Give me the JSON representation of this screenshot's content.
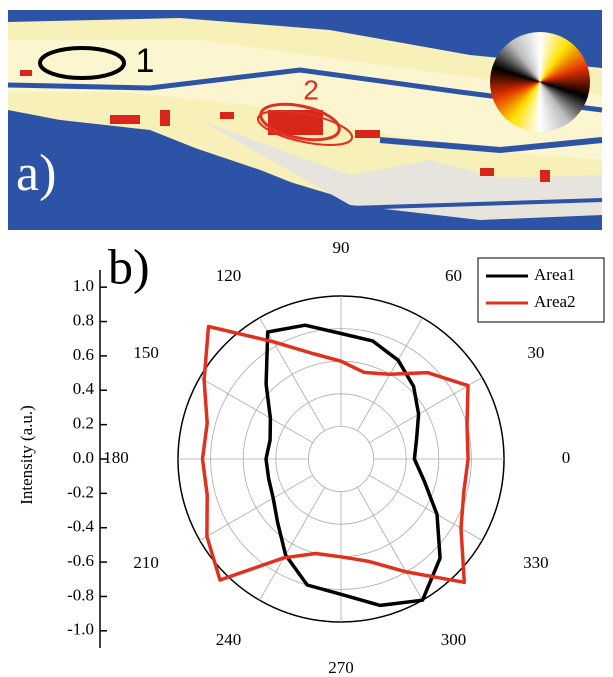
{
  "panel_a": {
    "label": "a)",
    "markers": [
      "1",
      "2"
    ]
  },
  "chart_data": {
    "type": "polar",
    "panel_label": "b)",
    "ylabel": "Intensity (a.u.)",
    "ylim": [
      -1.1,
      1.1
    ],
    "yticks": [
      {
        "value": -1,
        "label": "-1.0"
      },
      -0.8,
      -0.6,
      -0.4,
      -0.2,
      {
        "value": 0,
        "label": "0.0"
      },
      0.2,
      0.4,
      0.6,
      0.8,
      {
        "value": 1,
        "label": "1.0"
      }
    ],
    "theta": [
      0,
      15,
      30,
      45,
      60,
      75,
      90,
      105,
      120,
      135,
      150,
      165,
      180,
      195,
      210,
      225,
      240,
      255,
      270,
      285,
      300,
      315,
      330,
      345
    ],
    "thetaticks": [
      0,
      30,
      60,
      90,
      120,
      150,
      180,
      210,
      240,
      270,
      300,
      330
    ],
    "rlim": [
      0,
      1
    ],
    "rticks": [
      0.2,
      0.4,
      0.6,
      0.8,
      1
    ],
    "grid": true,
    "legend": "upper right",
    "series": [
      {
        "name": "Area1",
        "color": "#000000",
        "values": [
          0.45,
          0.48,
          0.55,
          0.63,
          0.7,
          0.75,
          0.77,
          0.85,
          0.9,
          0.65,
          0.5,
          0.45,
          0.46,
          0.46,
          0.48,
          0.55,
          0.68,
          0.8,
          0.83,
          0.93,
          1.0,
          0.86,
          0.68,
          0.53
        ]
      },
      {
        "name": "Area2",
        "color": "#e0301e",
        "values": [
          0.78,
          0.8,
          0.9,
          0.75,
          0.6,
          0.55,
          0.6,
          0.67,
          0.83,
          1.15,
          0.97,
          0.85,
          0.85,
          0.85,
          0.95,
          1.05,
          0.7,
          0.6,
          0.6,
          0.65,
          0.8,
          1.07,
          0.85,
          0.78
        ]
      }
    ]
  }
}
